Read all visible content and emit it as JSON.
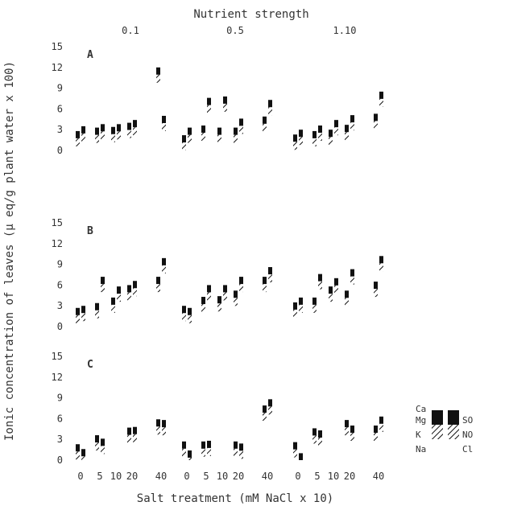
{
  "chart_data": {
    "type": "bar",
    "title": "Nutrient strength",
    "xlabel": "Salt treatment (mM NaCl x 10)",
    "ylabel": "Ionic concentration of leaves (μ eq/g plant water x 100)",
    "groups": [
      "0.1",
      "0.5",
      "1.10"
    ],
    "categories": [
      "0",
      "5",
      "10",
      "20",
      "40"
    ],
    "y_ticks": [
      "0",
      "3",
      "6",
      "9",
      "12",
      "15"
    ],
    "ylim": [
      0,
      15
    ],
    "panels": [
      {
        "label": "A",
        "cations": [
          [
            2.8,
            3.3,
            3.4,
            4.0,
            12.0
          ],
          [
            2.2,
            3.6,
            3.3,
            3.3,
            4.9
          ],
          [
            2.3,
            2.8,
            3.0,
            3.7,
            5.3
          ]
        ],
        "anions": [
          [
            3.5,
            3.8,
            3.8,
            4.4,
            5.0
          ],
          [
            3.3,
            7.6,
            7.8,
            4.6,
            7.3
          ],
          [
            3.0,
            3.6,
            4.4,
            5.1,
            8.5
          ]
        ]
      },
      {
        "label": "B",
        "cations": [
          [
            2.7,
            3.4,
            4.2,
            6.0,
            7.2
          ],
          [
            3.0,
            4.3,
            4.4,
            5.2,
            7.2
          ],
          [
            3.5,
            4.2,
            5.8,
            5.2,
            6.5
          ]
        ],
        "anions": [
          [
            3.0,
            7.2,
            5.8,
            6.6,
            9.9
          ],
          [
            2.7,
            6.0,
            6.0,
            7.2,
            8.6
          ],
          [
            4.2,
            7.6,
            7.0,
            8.3,
            10.2
          ]
        ]
      },
      {
        "label": "C",
        "cations": [
          [
            2.3,
            3.6,
            0.0,
            4.7,
            5.9
          ],
          [
            2.7,
            2.7,
            0.0,
            2.7,
            7.9
          ],
          [
            2.6,
            4.6,
            0.0,
            5.8,
            5.0
          ]
        ],
        "anions": [
          [
            1.6,
            3.1,
            0.0,
            4.8,
            5.8
          ],
          [
            1.4,
            2.8,
            0.0,
            2.4,
            8.8
          ],
          [
            1.0,
            4.3,
            0.0,
            5.0,
            6.3
          ]
        ]
      }
    ],
    "legend": {
      "cations": [
        "Ca",
        "Mg",
        "K",
        "Na"
      ],
      "anions": [
        "SO",
        "NO",
        "Cl"
      ]
    },
    "colors": {
      "ink": "#111111",
      "axis": "#333333",
      "background": "#ffffff"
    }
  }
}
